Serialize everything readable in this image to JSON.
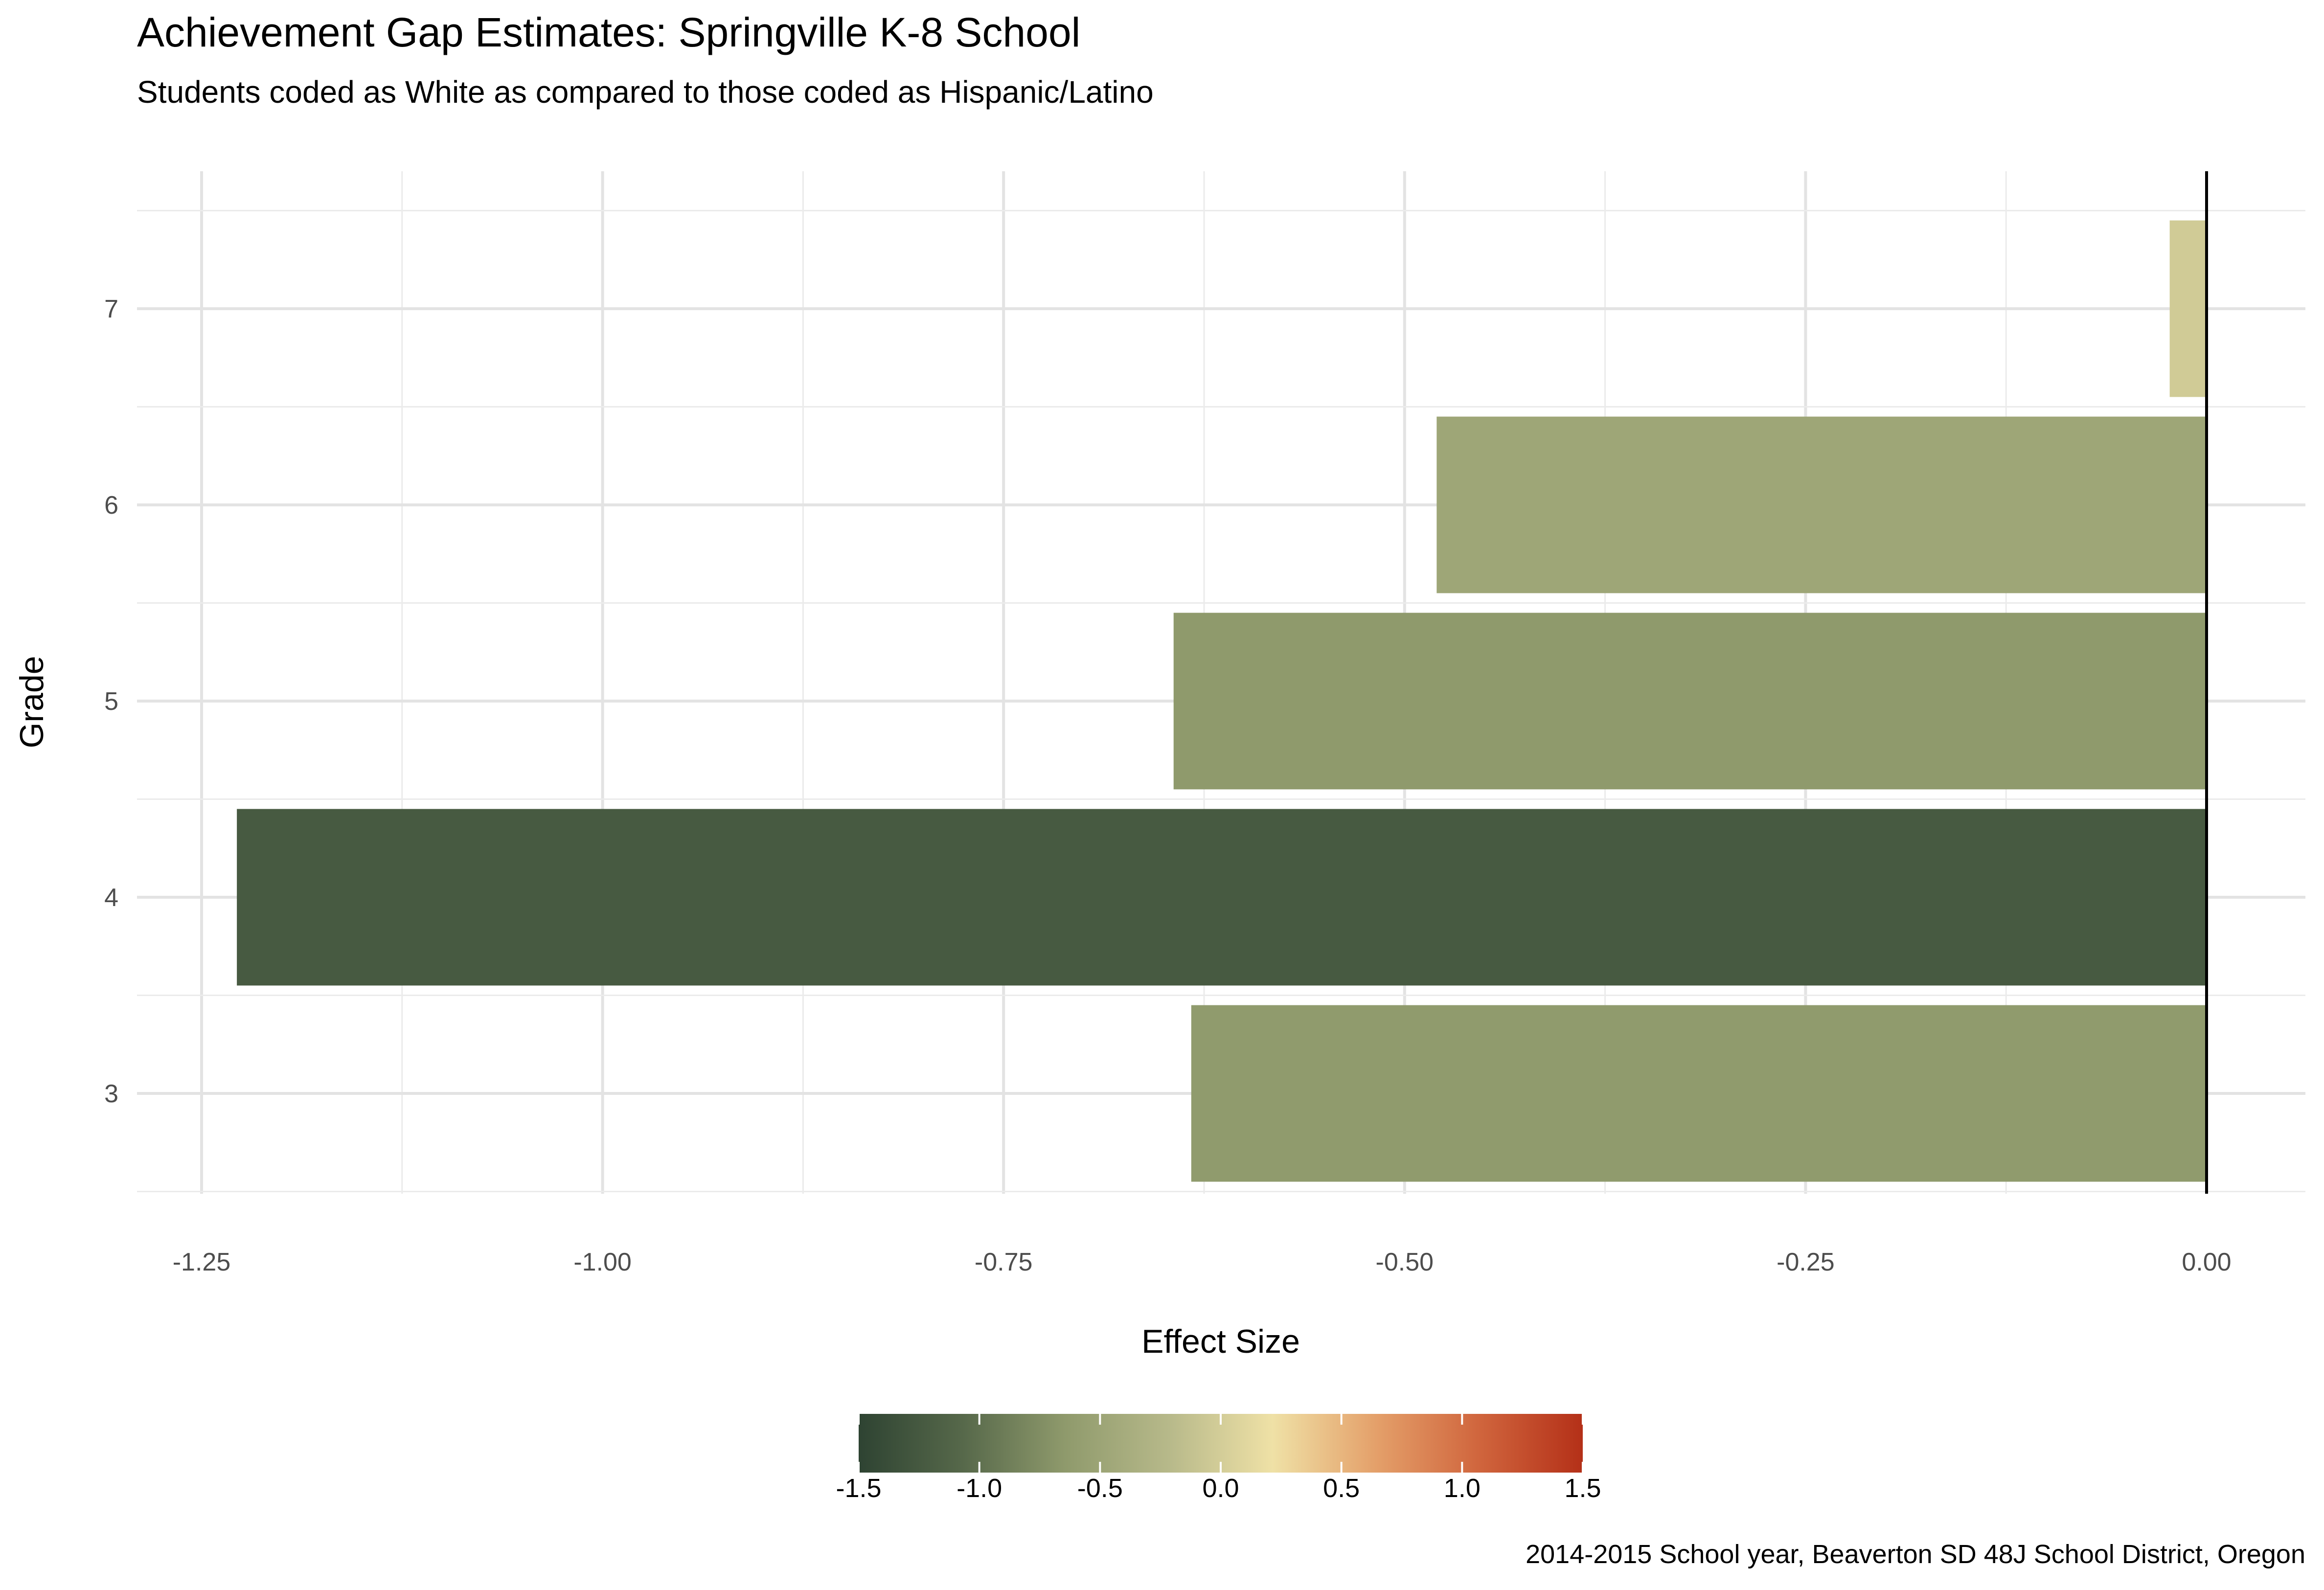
{
  "chart_data": {
    "type": "bar",
    "orientation": "horizontal",
    "title": "Achievement Gap Estimates: Springville K-8 School",
    "subtitle": "Students coded as White as compared to those coded as Hispanic/Latino",
    "xlabel": "Effect Size",
    "ylabel": "Grade",
    "caption": "2014-2015 School year, Beaverton SD 48J School District, Oregon",
    "categories": [
      "3",
      "4",
      "5",
      "6",
      "7"
    ],
    "values": [
      -0.633,
      -1.228,
      -0.644,
      -0.48,
      -0.023
    ],
    "xlim": [
      -1.3,
      0.0
    ],
    "x_ticks": [
      "-1.25",
      "-1.00",
      "-0.75",
      "-0.50",
      "-0.25",
      "0.00"
    ],
    "x_tick_values": [
      -1.25,
      -1.0,
      -0.75,
      -0.5,
      -0.25,
      0.0
    ],
    "grid": true,
    "reference_line_x": 0,
    "legend": {
      "position": "bottom",
      "type": "colorbar",
      "range": [
        -1.5,
        1.5
      ],
      "labels": [
        "-1.5",
        "-1.0",
        "-0.5",
        "0.0",
        "0.5",
        "1.0",
        "1.5"
      ],
      "label_values": [
        -1.5,
        -1.0,
        -0.5,
        0.0,
        0.5,
        1.0,
        1.5
      ],
      "colors": [
        "#2e4332",
        "#56684a",
        "#8f9a6c",
        "#b7b98a",
        "#efe1a6",
        "#e4a06a",
        "#d0653d",
        "#b43018"
      ]
    }
  }
}
